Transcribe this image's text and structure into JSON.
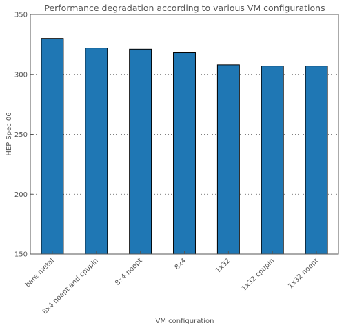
{
  "chart_data": {
    "type": "bar",
    "title": "Performance degradation according to various VM configurations",
    "xlabel": "VM configuration",
    "ylabel": "HEP Spec 06",
    "ylim": [
      150,
      350
    ],
    "yticks": [
      150,
      200,
      250,
      300,
      350
    ],
    "grid": true,
    "categories": [
      "bare metal",
      "8x4 noept and cpupin",
      "8x4 noept",
      "8x4",
      "1x32",
      "1x32 cpupin",
      "1x32 noept"
    ],
    "values": [
      330,
      322,
      321,
      318,
      308,
      307,
      307
    ],
    "bar_color": "#1f77b4",
    "edge_color": "#000000"
  }
}
